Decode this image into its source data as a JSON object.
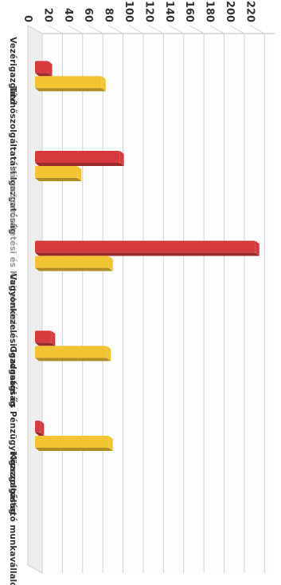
{
  "chart_data": {
    "type": "bar",
    "orientation": "vertical-3d",
    "rotation": "rotated 90° clockwise in screenshot",
    "categories": [
      "Vezérigazgató",
      "Távhőszolgáltatási Igazgatóság",
      "Városüzemeltetési és Kivitelezési...",
      "Vagyonkezelési Igazgatóság",
      "Gazdasági és Pénzügyi Igazgatóság",
      "Közszolgáltató munkavállaló"
    ],
    "series": [
      {
        "values": [
          13,
          84,
          218,
          16,
          5,
          0
        ],
        "color": "#d63a3f"
      },
      {
        "values": [
          66,
          42,
          73,
          71,
          73,
          0
        ],
        "color": "#f2c431"
      }
    ],
    "y_ticks": [
      "0",
      "20",
      "40",
      "60",
      "80",
      "100",
      "120",
      "140",
      "160",
      "180",
      "200",
      "220"
    ],
    "ylim": [
      0,
      230
    ],
    "grid": true,
    "legend": "none",
    "title": "",
    "xlabel": "",
    "ylabel": ""
  }
}
